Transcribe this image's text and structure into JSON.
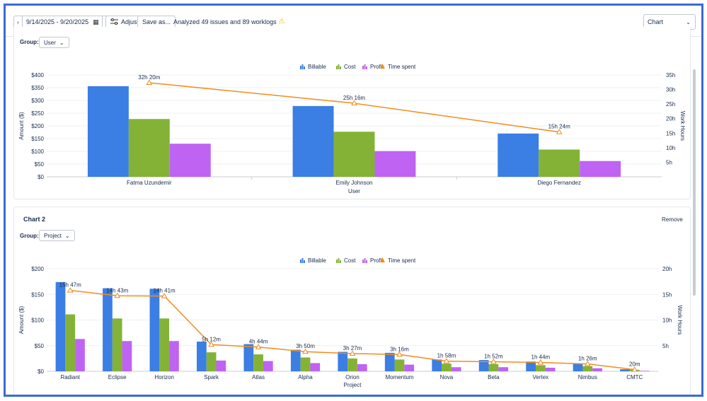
{
  "toolbar": {
    "date_range": "9/14/2025 - 9/20/2025",
    "prev_icon": "chevron-left-icon",
    "next_icon": "chevron-right-icon",
    "adjust_label": "Adjust",
    "save_label": "Save as...",
    "status_text": "Analyzed 49 issues and 89 worklogs",
    "view_select": "Chart"
  },
  "legend": [
    "Billable",
    "Cost",
    "Profit",
    "Time spent"
  ],
  "colors": {
    "billable": "#3b7ee4",
    "cost": "#84b237",
    "profit": "#bf63f3",
    "time": "#f28c1d"
  },
  "chart1": {
    "group_label": "Group:",
    "group_value": "User"
  },
  "chart2": {
    "title": "Chart 2",
    "remove_label": "Remove",
    "group_label": "Group:",
    "group_value": "Project"
  },
  "chart_data": [
    {
      "type": "bar",
      "title": "",
      "xlabel": "User",
      "ylabel": "Amount ($)",
      "y2label": "Work Hours",
      "ylim": [
        0,
        400
      ],
      "y2lim": [
        0,
        35
      ],
      "yticks": [
        "$0",
        "$50",
        "$100",
        "$150",
        "$200",
        "$250",
        "$300",
        "$350",
        "$400"
      ],
      "y2ticks": [
        "5h",
        "10h",
        "15h",
        "20h",
        "25h",
        "30h",
        "35h"
      ],
      "categories": [
        "Fatma Uzundemir",
        "Emily Johnson",
        "Diego Fernandez"
      ],
      "series": [
        {
          "name": "Billable",
          "values": [
            356,
            278,
            170
          ]
        },
        {
          "name": "Cost",
          "values": [
            227,
            177,
            107
          ]
        },
        {
          "name": "Profit",
          "values": [
            130,
            101,
            62
          ]
        }
      ],
      "line": {
        "name": "Time spent",
        "values": [
          32.33,
          25.27,
          15.4
        ],
        "labels": [
          "32h 20m",
          "25h 16m",
          "15h 24m"
        ]
      }
    },
    {
      "type": "bar",
      "title": "Chart 2",
      "xlabel": "Project",
      "ylabel": "Amount ($)",
      "y2label": "Work Hours",
      "ylim": [
        0,
        200
      ],
      "y2lim": [
        0,
        20
      ],
      "yticks": [
        "$0",
        "$50",
        "$100",
        "$150",
        "$200"
      ],
      "y2ticks": [
        "5h",
        "10h",
        "15h",
        "20h"
      ],
      "categories": [
        "Radiant",
        "Eclipse",
        "Horizon",
        "Spark",
        "Atlas",
        "Alpha",
        "Orion",
        "Momentum",
        "Nova",
        "Beta",
        "Vertex",
        "Nimbus",
        "CMTC"
      ],
      "series": [
        {
          "name": "Billable",
          "values": [
            174,
            162,
            161,
            58,
            53,
            42,
            38,
            36,
            23,
            22,
            19,
            15,
            4
          ]
        },
        {
          "name": "Cost",
          "values": [
            111,
            103,
            103,
            37,
            33,
            27,
            25,
            23,
            15,
            14,
            12,
            10,
            3
          ]
        },
        {
          "name": "Profit",
          "values": [
            63,
            59,
            59,
            21,
            20,
            16,
            14,
            13,
            8,
            8,
            7,
            6,
            1
          ]
        }
      ],
      "line": {
        "name": "Time spent",
        "values": [
          15.78,
          14.72,
          14.68,
          5.2,
          4.73,
          3.83,
          3.45,
          3.27,
          1.97,
          1.87,
          1.73,
          1.43,
          0.33
        ],
        "labels": [
          "15h 47m",
          "14h 43m",
          "14h 41m",
          "5h 12m",
          "4h 44m",
          "3h 50m",
          "3h 27m",
          "3h 16m",
          "1h 58m",
          "1h 52m",
          "1h 44m",
          "1h 26m",
          "20m"
        ]
      }
    }
  ]
}
